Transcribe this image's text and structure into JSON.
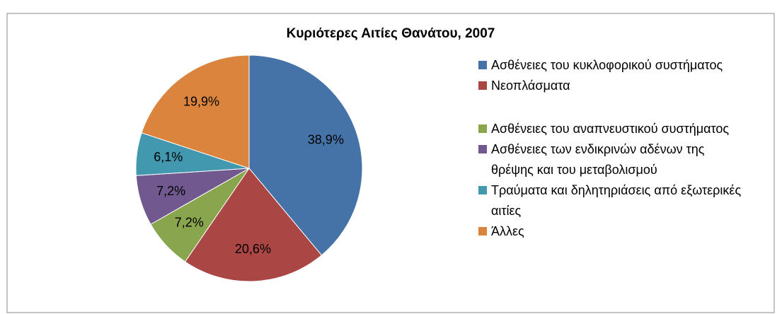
{
  "chart_data": {
    "type": "pie",
    "title": "Κυριότερες Αιτίες Θανάτου, 2007",
    "categories": [
      "Ασθένειες του κυκλοφορικού συστήματος",
      "Νεοπλάσματα",
      "Ασθένειες του αναπνευστικού συστήματος",
      "Ασθένειες των ενδικρινών αδένων της θρέψης και του μεταβολισμού",
      "Τραύματα και δηλητηριάσεις από εξωτερικές αιτίες",
      "Άλλες"
    ],
    "values": [
      38.9,
      20.6,
      7.2,
      7.2,
      6.1,
      19.9
    ],
    "value_labels": [
      "38,9%",
      "20,6%",
      "7,2%",
      "7,2%",
      "6,1%",
      "19,9%"
    ],
    "colors": [
      "#4572a7",
      "#aa4643",
      "#89a54e",
      "#71588f",
      "#4198af",
      "#db843d"
    ],
    "legend": "right"
  }
}
